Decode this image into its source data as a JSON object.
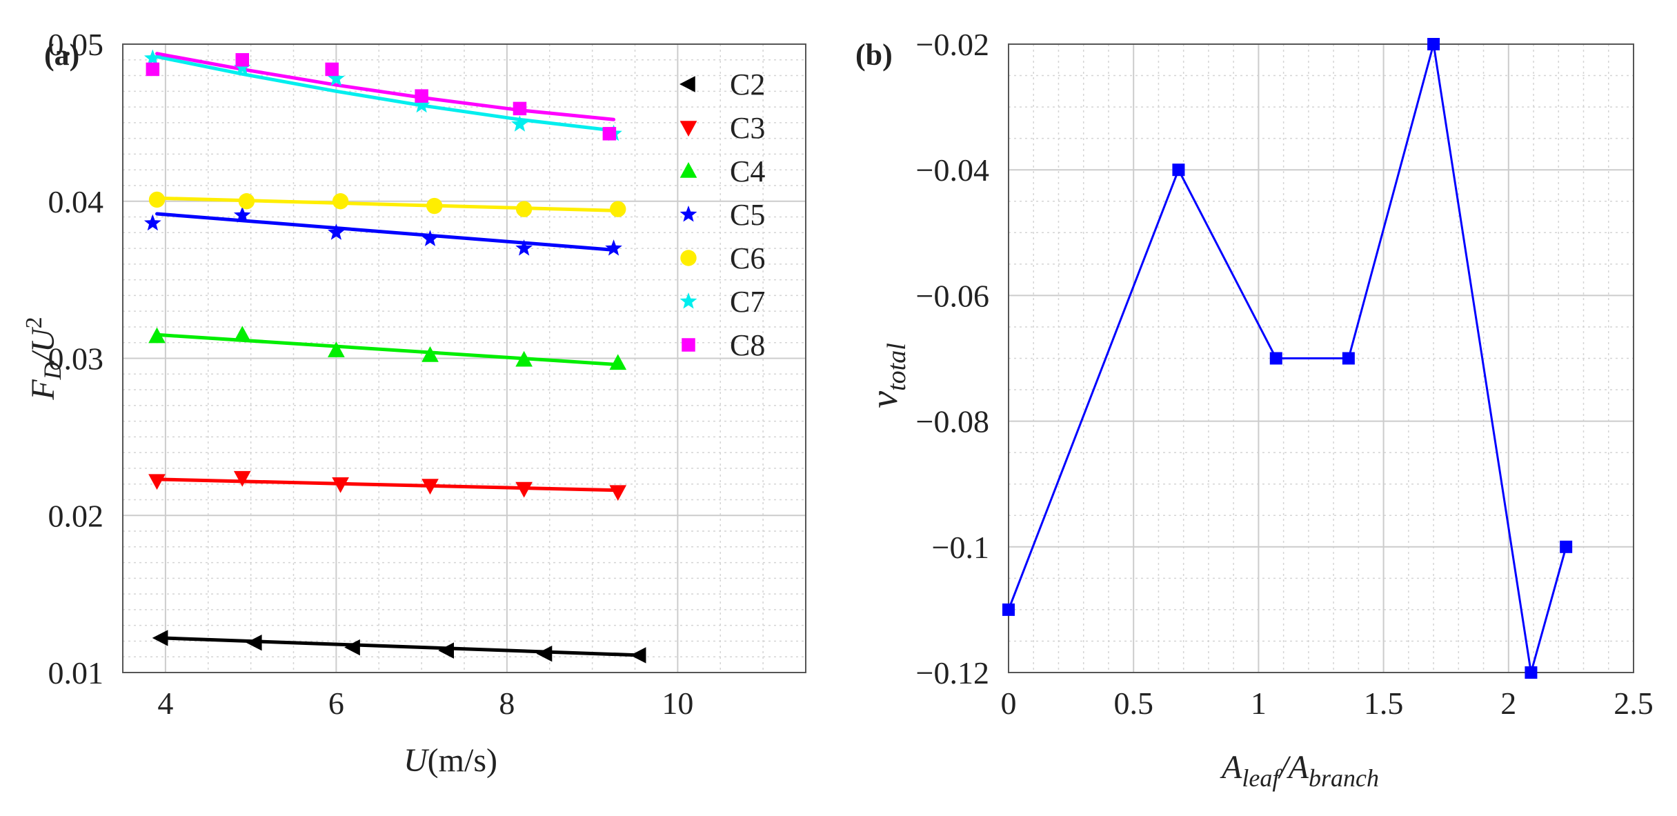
{
  "chart_data": [
    {
      "type": "scatter",
      "panel_label": "(a)",
      "xlim": [
        3.5,
        11.5
      ],
      "ylim": [
        0.01,
        0.05
      ],
      "x_ticks": [
        "4",
        "6",
        "8",
        "10"
      ],
      "x_tick_values": [
        4,
        6,
        8,
        10
      ],
      "y_ticks": [
        "0.01",
        "0.02",
        "0.03",
        "0.04",
        "0.05"
      ],
      "y_tick_values": [
        0.01,
        0.02,
        0.03,
        0.04,
        0.05
      ],
      "xlabel": {
        "var": "U",
        "unit": "(m/s)"
      },
      "ylabel": {
        "var": "F",
        "sub": "D",
        "mid": "/U",
        "sup": "2"
      },
      "grid": true,
      "legend_position": "right",
      "series": [
        {
          "name": "C2",
          "color": "#000000",
          "marker": "triangle-left",
          "x": [
            3.95,
            5.05,
            6.2,
            7.3,
            8.45,
            9.55
          ],
          "y": [
            0.0122,
            0.0119,
            0.0116,
            0.0114,
            0.0112,
            0.0111
          ],
          "fit": [
            [
              3.95,
              0.0122
            ],
            [
              9.55,
              0.0111
            ]
          ]
        },
        {
          "name": "C3",
          "color": "#ff0000",
          "marker": "triangle-down",
          "x": [
            3.9,
            4.9,
            6.05,
            7.1,
            8.2,
            9.3
          ],
          "y": [
            0.0222,
            0.0224,
            0.022,
            0.0219,
            0.0217,
            0.0215
          ],
          "fit": [
            [
              3.9,
              0.0223
            ],
            [
              9.3,
              0.0216
            ]
          ]
        },
        {
          "name": "C4",
          "color": "#00ee00",
          "marker": "triangle-up",
          "x": [
            3.9,
            4.9,
            6.0,
            7.1,
            8.2,
            9.3
          ],
          "y": [
            0.0314,
            0.0315,
            0.0305,
            0.0302,
            0.0299,
            0.0297
          ],
          "fit": [
            [
              3.9,
              0.0315
            ],
            [
              9.3,
              0.0296
            ]
          ]
        },
        {
          "name": "C5",
          "color": "#0000ff",
          "marker": "star",
          "x": [
            3.85,
            4.9,
            6.0,
            7.1,
            8.2,
            9.25
          ],
          "y": [
            0.0386,
            0.0391,
            0.038,
            0.0376,
            0.037,
            0.037
          ],
          "fit": [
            [
              3.9,
              0.0392
            ],
            [
              9.25,
              0.0369
            ]
          ]
        },
        {
          "name": "C6",
          "color": "#ffee00",
          "marker": "circle",
          "x": [
            3.9,
            4.95,
            6.05,
            7.15,
            8.2,
            9.3
          ],
          "y": [
            0.0401,
            0.04,
            0.04,
            0.0397,
            0.0395,
            0.0395
          ],
          "fit": [
            [
              3.9,
              0.0402
            ],
            [
              9.3,
              0.0394
            ]
          ]
        },
        {
          "name": "C7",
          "color": "#00eeee",
          "marker": "star",
          "x": [
            3.85,
            4.9,
            6.0,
            7.0,
            8.15,
            9.25
          ],
          "y": [
            0.0491,
            0.0485,
            0.0478,
            0.0461,
            0.0449,
            0.0443
          ],
          "fit": [
            [
              3.9,
              0.0492
            ],
            [
              4.9,
              0.0481
            ],
            [
              6.0,
              0.047
            ],
            [
              7.0,
              0.0461
            ],
            [
              8.15,
              0.0452
            ],
            [
              9.25,
              0.0445
            ]
          ]
        },
        {
          "name": "C8",
          "color": "#ff00ff",
          "marker": "square",
          "x": [
            3.85,
            4.9,
            5.95,
            7.0,
            8.15,
            9.2
          ],
          "y": [
            0.0484,
            0.049,
            0.0484,
            0.0467,
            0.0459,
            0.0443
          ],
          "fit": [
            [
              3.9,
              0.0494
            ],
            [
              4.9,
              0.0484
            ],
            [
              6.0,
              0.0474
            ],
            [
              7.0,
              0.0466
            ],
            [
              8.15,
              0.0458
            ],
            [
              9.25,
              0.0452
            ]
          ]
        }
      ]
    },
    {
      "type": "line",
      "panel_label": "(b)",
      "xlim": [
        0,
        2.5
      ],
      "ylim": [
        -0.12,
        -0.02
      ],
      "x_ticks": [
        "0",
        "0.5",
        "1",
        "1.5",
        "2",
        "2.5"
      ],
      "x_tick_values": [
        0,
        0.5,
        1,
        1.5,
        2,
        2.5
      ],
      "y_ticks": [
        "−0.02",
        "−0.04",
        "−0.06",
        "−0.08",
        "−0.1",
        "−0.12"
      ],
      "y_tick_values": [
        -0.02,
        -0.04,
        -0.06,
        -0.08,
        -0.1,
        -0.12
      ],
      "xlabel": {
        "var": "A",
        "sub1": "leaf",
        "mid": "/A",
        "sub2": "branch"
      },
      "ylabel": {
        "var": "ν",
        "sub": "total"
      },
      "grid": true,
      "series": [
        {
          "name": "nu_total",
          "color": "#0000ff",
          "marker": "square",
          "x": [
            0.0,
            0.68,
            1.07,
            1.36,
            1.7,
            2.09,
            2.23
          ],
          "y": [
            -0.11,
            -0.04,
            -0.07,
            -0.07,
            -0.02,
            -0.12,
            -0.1
          ]
        }
      ]
    }
  ]
}
